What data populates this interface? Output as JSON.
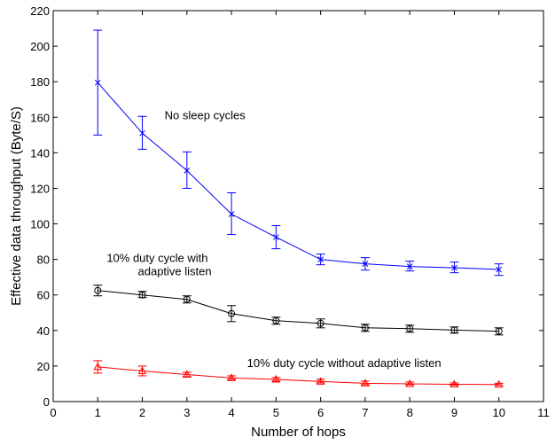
{
  "chart_data": {
    "type": "line",
    "title": "",
    "xlabel": "Number of hops",
    "ylabel": "Effective data throughput (Byte/S)",
    "xlim": [
      0,
      11
    ],
    "ylim": [
      0,
      220
    ],
    "xticks": [
      0,
      1,
      2,
      3,
      4,
      5,
      6,
      7,
      8,
      9,
      10,
      11
    ],
    "yticks": [
      0,
      20,
      40,
      60,
      80,
      100,
      120,
      140,
      160,
      180,
      200,
      220
    ],
    "grid": false,
    "legend": "none",
    "x": [
      1,
      2,
      3,
      4,
      5,
      6,
      7,
      8,
      9,
      10
    ],
    "series": [
      {
        "color": "#0000ff",
        "marker": "x",
        "values": [
          179.5,
          151,
          130,
          105.5,
          92.5,
          80,
          77.5,
          76,
          75.3,
          74.3
        ],
        "err_low": [
          150,
          142,
          120,
          94,
          86,
          77,
          74,
          73.5,
          72.5,
          71
        ],
        "err_high": [
          209,
          160.5,
          140.5,
          117.5,
          99,
          83,
          81,
          79,
          78.5,
          77.5
        ]
      },
      {
        "color": "#000000",
        "marker": "circle",
        "values": [
          62.5,
          60,
          57.5,
          49.5,
          45.5,
          44,
          41.5,
          41,
          40.2,
          39.6
        ],
        "err_low": [
          59.5,
          58.5,
          55.5,
          45,
          43.5,
          41.5,
          39.5,
          39,
          38.5,
          37.5
        ],
        "err_high": [
          65.5,
          62,
          59.5,
          54,
          47.5,
          46.5,
          43.5,
          43,
          42,
          41.5
        ]
      },
      {
        "color": "#ff0000",
        "marker": "triangle",
        "values": [
          19.5,
          17.2,
          15.2,
          13.3,
          12.5,
          11.3,
          10.3,
          10,
          9.7,
          9.6
        ],
        "err_low": [
          16,
          14.5,
          14,
          12.5,
          11.5,
          10.5,
          9.5,
          9.5,
          9.2,
          9.1
        ],
        "err_high": [
          23,
          20,
          16.5,
          14.5,
          13.5,
          12.5,
          11.5,
          11,
          10.5,
          10.3
        ]
      }
    ],
    "annotations": [
      {
        "text": "No sleep cycles",
        "x": 2.5,
        "y": 159
      },
      {
        "text": "10% duty cycle with",
        "x": 1.2,
        "y": 78.5
      },
      {
        "text": "adaptive listen",
        "x": 1.9,
        "y": 71
      },
      {
        "text": "10% duty cycle without adaptive listen",
        "x": 4.35,
        "y": 19.5
      }
    ]
  }
}
